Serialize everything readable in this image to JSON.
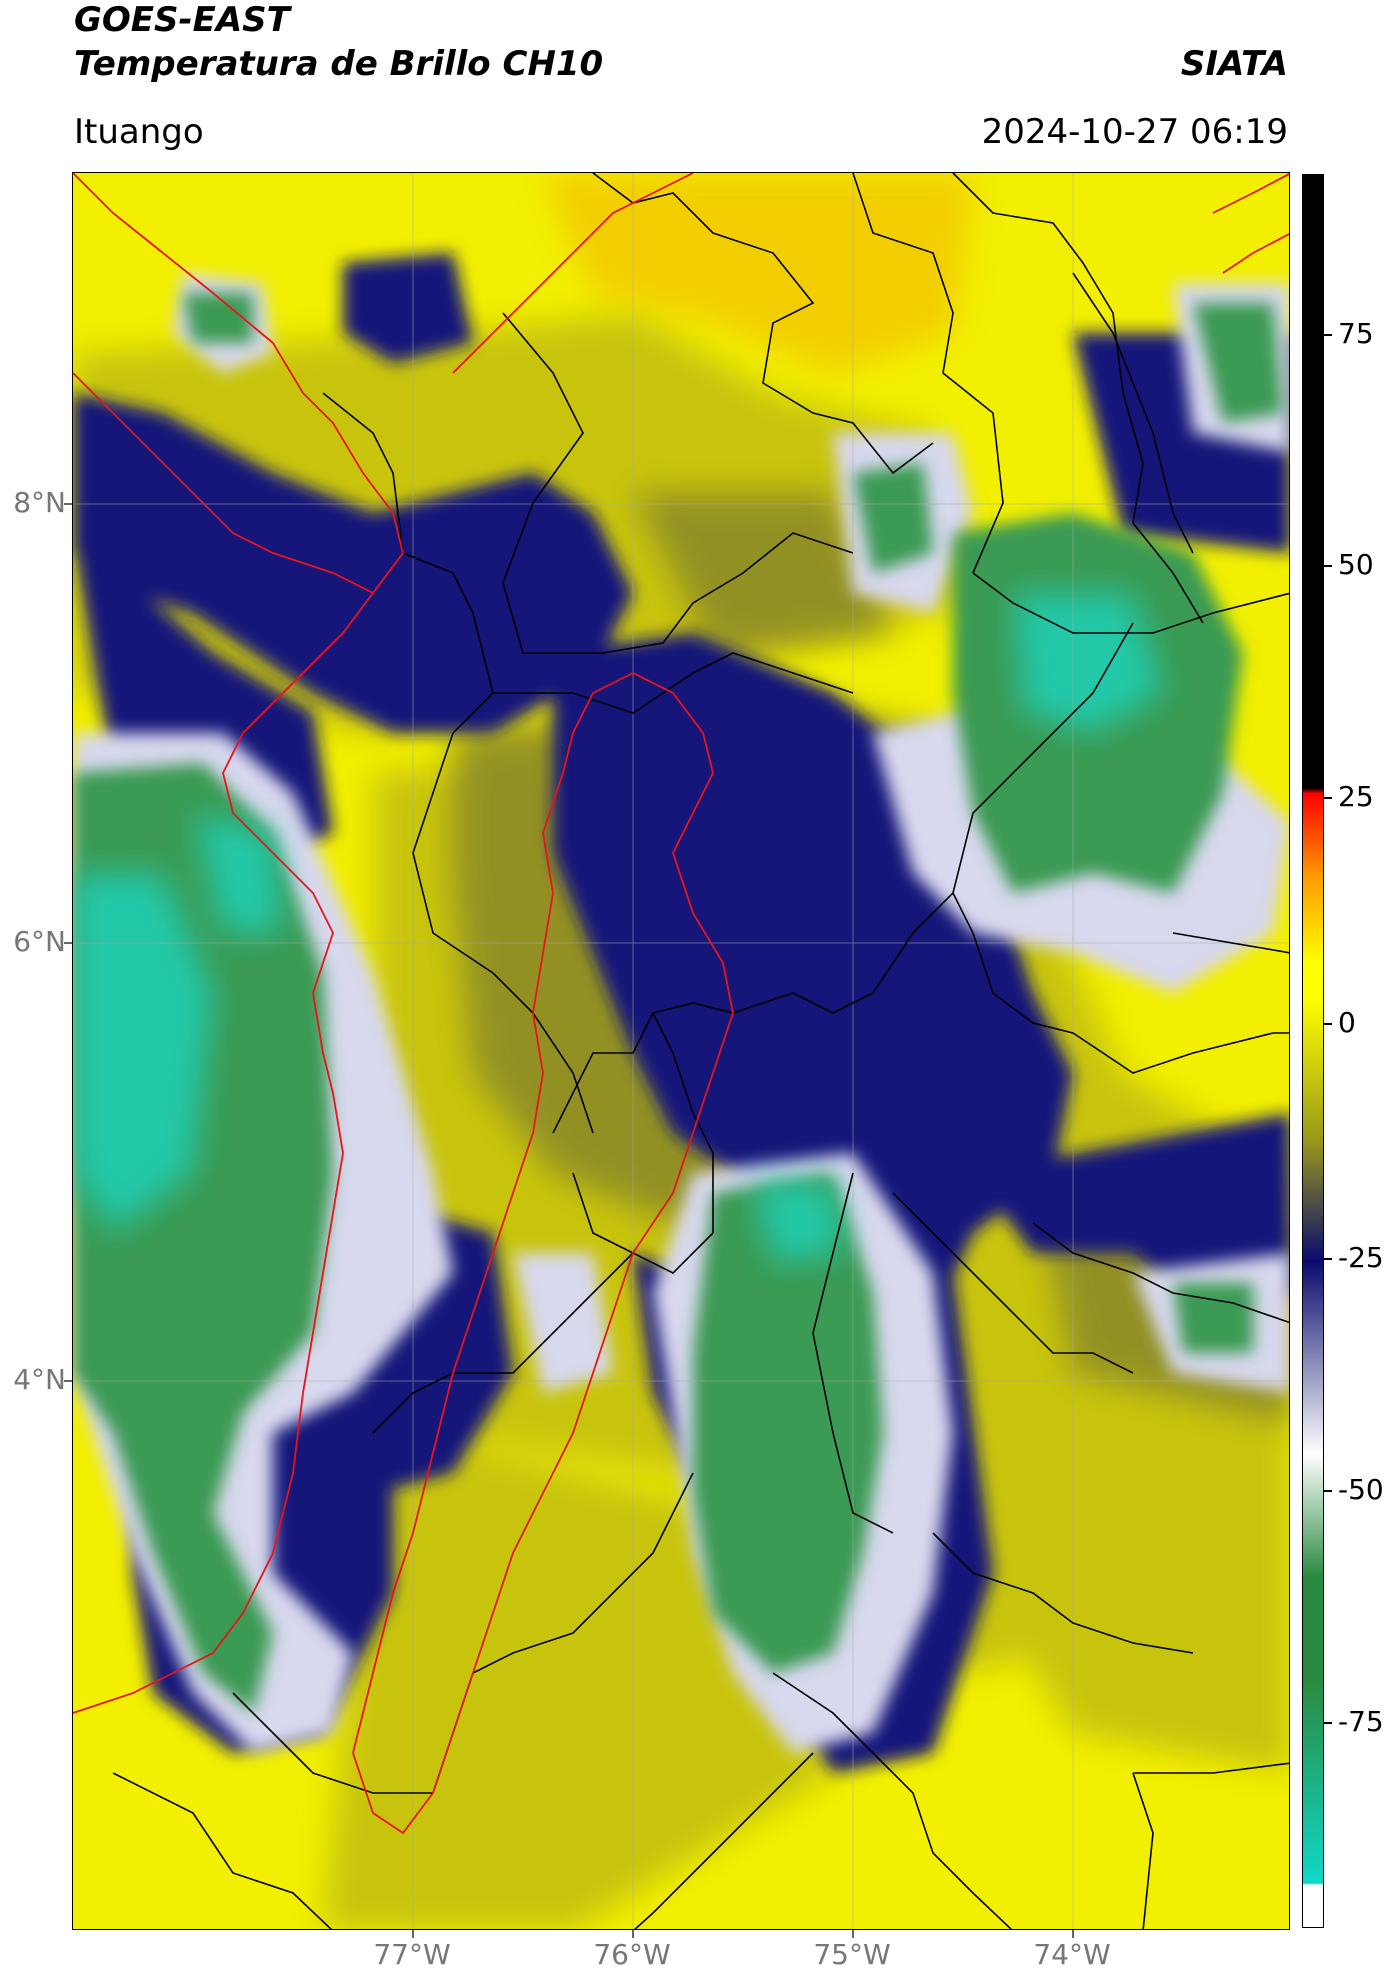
{
  "header": {
    "title_line1": "GOES-EAST",
    "title_line2": "Temperatura de Brillo CH10",
    "agency": "SIATA",
    "location": "Ituango",
    "timestamp": "2024-10-27 06:19"
  },
  "axes": {
    "lat_labels": [
      "8°N",
      "6°N",
      "4°N"
    ],
    "lon_labels": [
      "77°W",
      "76°W",
      "75°W",
      "74°W"
    ]
  },
  "colorbar": {
    "tick_labels": [
      "75",
      "50",
      "25",
      "0",
      "-25",
      "-50",
      "-75"
    ],
    "colors": {
      "black": "#000000",
      "red": "#ff0000",
      "orange": "#ff9900",
      "yellow": "#ffff00",
      "olive": "#9a9a1a",
      "navy": "#0a0a6e",
      "white": "#ffffff",
      "green": "#2a8a40",
      "teal": "#10d8c8"
    }
  },
  "map_colors": {
    "yellow": "#f2ef00",
    "olive_light": "#c8c40c",
    "olive": "#8d8b28",
    "navy": "#13137a",
    "lavender": "#c8c8e8",
    "green": "#3b9a52",
    "teal": "#22c8a8",
    "orange": "#f5c400",
    "boundary_black": "#000000",
    "boundary_red": "#e8141a"
  }
}
